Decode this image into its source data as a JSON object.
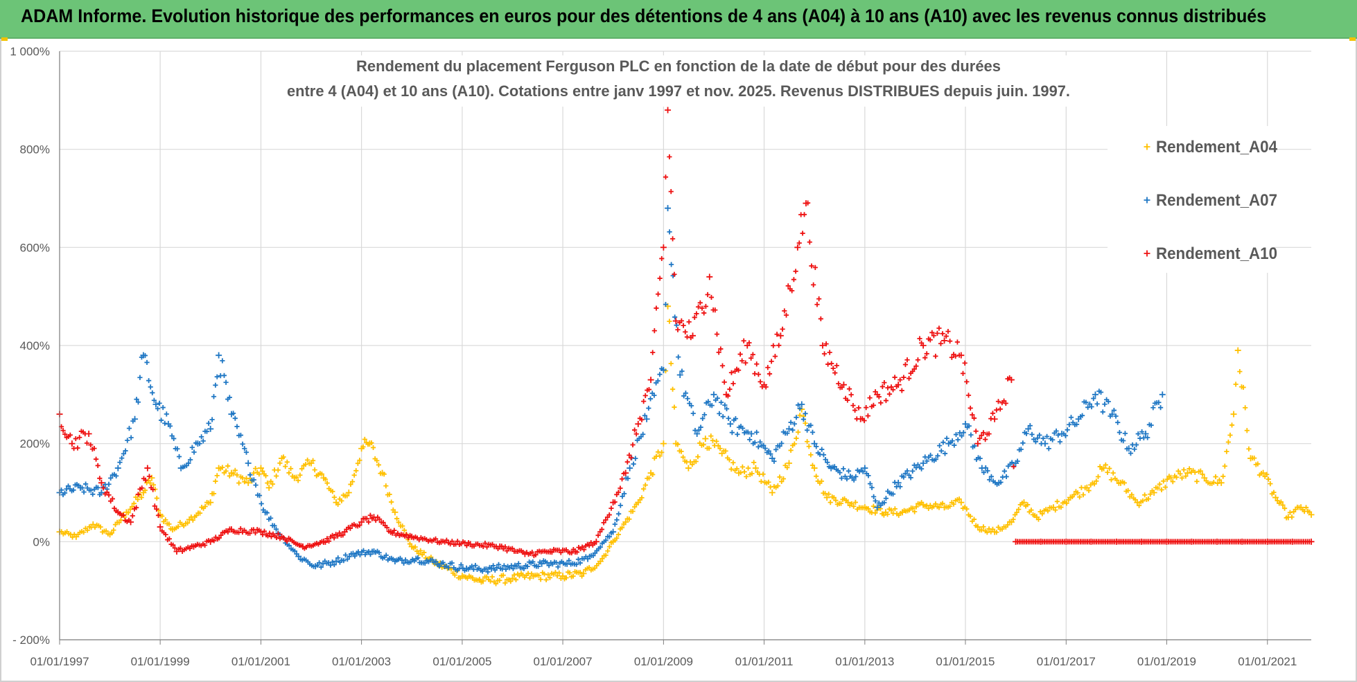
{
  "banner": {
    "title": "ADAM Informe. Evolution historique des performances en euros pour des détentions de 4 ans (A04) à 10 ans (A10) avec les revenus connus distribués"
  },
  "colors": {
    "banner_bg": "#6cc477",
    "A04": "#ffc000",
    "A07": "#1f77c4",
    "A10": "#ee1111",
    "grid": "#d9d9d9",
    "text": "#595959"
  },
  "chart_data": {
    "type": "scatter",
    "marker": "plus",
    "title_lines": [
      "Rendement du placement Ferguson PLC en fonction de la date de début pour des durées",
      "entre 4 (A04) et 10 ans (A10). Cotations entre janv 1997 et nov. 2025. Revenus DISTRIBUES depuis juin. 1997."
    ],
    "xlabel": "",
    "ylabel": "",
    "x_range": [
      "01/01/1997",
      "15/11/2021"
    ],
    "x_ticks": [
      "01/01/1997",
      "01/01/1999",
      "01/01/2001",
      "01/01/2003",
      "01/01/2005",
      "01/01/2007",
      "01/01/2009",
      "01/01/2011",
      "01/01/2013",
      "01/01/2015",
      "01/01/2017",
      "01/01/2019",
      "01/01/2021"
    ],
    "y_range": [
      -200,
      1000
    ],
    "y_ticks": [
      -200,
      0,
      200,
      400,
      600,
      800,
      1000
    ],
    "y_tick_labels": [
      "- 200%",
      "0%",
      "200%",
      "400%",
      "600%",
      "800%",
      "1 000%"
    ],
    "grid": true,
    "legend_position": "top-right",
    "series": [
      {
        "name": "Rendement_A04",
        "color": "#ffc000",
        "points": [
          [
            "1997-01-01",
            20
          ],
          [
            "1997-05-01",
            10
          ],
          [
            "1997-09-01",
            35
          ],
          [
            "1998-01-01",
            15
          ],
          [
            "1998-05-01",
            60
          ],
          [
            "1998-09-01",
            100
          ],
          [
            "1998-11-01",
            130
          ],
          [
            "1999-01-01",
            55
          ],
          [
            "1999-04-01",
            25
          ],
          [
            "1999-08-01",
            45
          ],
          [
            "2000-01-01",
            80
          ],
          [
            "2000-03-01",
            150
          ],
          [
            "2000-06-01",
            140
          ],
          [
            "2000-10-01",
            120
          ],
          [
            "2001-01-01",
            150
          ],
          [
            "2001-03-01",
            110
          ],
          [
            "2001-06-01",
            170
          ],
          [
            "2001-09-01",
            130
          ],
          [
            "2002-01-01",
            160
          ],
          [
            "2002-04-01",
            130
          ],
          [
            "2002-07-01",
            80
          ],
          [
            "2002-10-01",
            100
          ],
          [
            "2003-01-01",
            190
          ],
          [
            "2003-03-01",
            200
          ],
          [
            "2003-06-01",
            140
          ],
          [
            "2003-09-01",
            60
          ],
          [
            "2004-01-01",
            -10
          ],
          [
            "2004-06-01",
            -40
          ],
          [
            "2005-01-01",
            -70
          ],
          [
            "2005-06-01",
            -80
          ],
          [
            "2006-01-01",
            -75
          ],
          [
            "2006-06-01",
            -70
          ],
          [
            "2007-01-01",
            -70
          ],
          [
            "2007-06-01",
            -65
          ],
          [
            "2007-10-01",
            -40
          ],
          [
            "2008-01-01",
            0
          ],
          [
            "2008-04-01",
            40
          ],
          [
            "2008-07-01",
            80
          ],
          [
            "2008-10-01",
            140
          ],
          [
            "2009-01-01",
            200
          ],
          [
            "2009-02-01",
            480
          ],
          [
            "2009-04-01",
            200
          ],
          [
            "2009-07-01",
            150
          ],
          [
            "2009-11-01",
            210
          ],
          [
            "2010-03-01",
            180
          ],
          [
            "2010-07-01",
            140
          ],
          [
            "2010-11-01",
            150
          ],
          [
            "2011-03-01",
            100
          ],
          [
            "2011-07-01",
            160
          ],
          [
            "2011-10-01",
            270
          ],
          [
            "2012-01-01",
            150
          ],
          [
            "2012-04-01",
            90
          ],
          [
            "2012-09-01",
            80
          ],
          [
            "2013-01-01",
            70
          ],
          [
            "2013-06-01",
            60
          ],
          [
            "2013-10-01",
            60
          ],
          [
            "2014-03-01",
            75
          ],
          [
            "2014-08-01",
            70
          ],
          [
            "2014-12-01",
            80
          ],
          [
            "2015-04-01",
            30
          ],
          [
            "2015-08-01",
            20
          ],
          [
            "2015-12-01",
            40
          ],
          [
            "2016-03-01",
            80
          ],
          [
            "2016-06-01",
            50
          ],
          [
            "2016-10-01",
            70
          ],
          [
            "2017-02-01",
            90
          ],
          [
            "2017-06-01",
            110
          ],
          [
            "2017-10-01",
            150
          ],
          [
            "2018-02-01",
            120
          ],
          [
            "2018-06-01",
            80
          ],
          [
            "2018-10-01",
            100
          ],
          [
            "2019-02-01",
            130
          ],
          [
            "2019-06-01",
            140
          ],
          [
            "2019-10-01",
            130
          ],
          [
            "2020-02-01",
            120
          ],
          [
            "2020-05-01",
            260
          ],
          [
            "2020-06-01",
            390
          ],
          [
            "2020-09-01",
            170
          ],
          [
            "2020-12-01",
            140
          ],
          [
            "2021-03-01",
            90
          ],
          [
            "2021-06-01",
            50
          ],
          [
            "2021-09-01",
            70
          ],
          [
            "2021-11-15",
            55
          ]
        ]
      },
      {
        "name": "Rendement_A07",
        "color": "#1f77c4",
        "points": [
          [
            "1997-01-01",
            100
          ],
          [
            "1997-06-01",
            110
          ],
          [
            "1997-11-01",
            100
          ],
          [
            "1998-03-01",
            150
          ],
          [
            "1998-07-01",
            250
          ],
          [
            "1998-09-01",
            380
          ],
          [
            "1998-12-01",
            280
          ],
          [
            "1999-03-01",
            240
          ],
          [
            "1999-06-01",
            150
          ],
          [
            "1999-10-01",
            200
          ],
          [
            "2000-01-01",
            230
          ],
          [
            "2000-03-01",
            380
          ],
          [
            "2000-06-01",
            260
          ],
          [
            "2000-10-01",
            160
          ],
          [
            "2001-02-01",
            60
          ],
          [
            "2001-06-01",
            10
          ],
          [
            "2001-10-01",
            -30
          ],
          [
            "2002-02-01",
            -50
          ],
          [
            "2002-07-01",
            -40
          ],
          [
            "2002-11-01",
            -25
          ],
          [
            "2003-04-01",
            -20
          ],
          [
            "2003-09-01",
            -40
          ],
          [
            "2004-02-01",
            -35
          ],
          [
            "2004-08-01",
            -45
          ],
          [
            "2005-02-01",
            -55
          ],
          [
            "2005-08-01",
            -55
          ],
          [
            "2006-02-01",
            -50
          ],
          [
            "2006-08-01",
            -45
          ],
          [
            "2007-02-01",
            -45
          ],
          [
            "2007-07-01",
            -35
          ],
          [
            "2008-01-01",
            20
          ],
          [
            "2008-05-01",
            150
          ],
          [
            "2008-09-01",
            250
          ],
          [
            "2009-01-01",
            350
          ],
          [
            "2009-02-01",
            680
          ],
          [
            "2009-05-01",
            340
          ],
          [
            "2009-09-01",
            220
          ],
          [
            "2010-01-01",
            300
          ],
          [
            "2010-05-01",
            240
          ],
          [
            "2010-10-01",
            220
          ],
          [
            "2011-03-01",
            170
          ],
          [
            "2011-07-01",
            230
          ],
          [
            "2011-10-01",
            280
          ],
          [
            "2012-01-01",
            200
          ],
          [
            "2012-05-01",
            150
          ],
          [
            "2012-10-01",
            130
          ],
          [
            "2013-01-01",
            150
          ],
          [
            "2013-04-01",
            70
          ],
          [
            "2013-09-01",
            120
          ],
          [
            "2014-03-01",
            160
          ],
          [
            "2014-09-01",
            200
          ],
          [
            "2015-01-01",
            240
          ],
          [
            "2015-05-01",
            150
          ],
          [
            "2015-09-01",
            120
          ],
          [
            "2016-01-01",
            160
          ],
          [
            "2016-04-01",
            230
          ],
          [
            "2016-08-01",
            200
          ],
          [
            "2016-12-01",
            220
          ],
          [
            "2017-04-01",
            250
          ],
          [
            "2017-08-01",
            300
          ],
          [
            "2017-12-01",
            260
          ],
          [
            "2018-04-01",
            190
          ],
          [
            "2018-08-01",
            220
          ],
          [
            "2018-12-01",
            300
          ]
        ]
      },
      {
        "name": "Rendement_A10",
        "color": "#ee1111",
        "points": [
          [
            "1997-01-01",
            260
          ],
          [
            "1997-04-01",
            200
          ],
          [
            "1997-08-01",
            220
          ],
          [
            "1997-11-01",
            120
          ],
          [
            "1998-03-01",
            60
          ],
          [
            "1998-06-01",
            40
          ],
          [
            "1998-10-01",
            150
          ],
          [
            "1999-01-01",
            30
          ],
          [
            "1999-05-01",
            -20
          ],
          [
            "1999-09-01",
            -10
          ],
          [
            "2000-01-01",
            0
          ],
          [
            "2000-06-01",
            25
          ],
          [
            "2001-01-01",
            20
          ],
          [
            "2001-06-01",
            10
          ],
          [
            "2001-11-01",
            -10
          ],
          [
            "2002-04-01",
            0
          ],
          [
            "2002-09-01",
            20
          ],
          [
            "2003-01-01",
            40
          ],
          [
            "2003-04-01",
            50
          ],
          [
            "2003-08-01",
            20
          ],
          [
            "2004-01-01",
            10
          ],
          [
            "2004-08-01",
            0
          ],
          [
            "2005-03-01",
            -5
          ],
          [
            "2005-10-01",
            -10
          ],
          [
            "2006-04-01",
            -25
          ],
          [
            "2006-10-01",
            -20
          ],
          [
            "2007-04-01",
            -20
          ],
          [
            "2007-09-01",
            0
          ],
          [
            "2008-01-01",
            80
          ],
          [
            "2008-04-01",
            140
          ],
          [
            "2008-07-01",
            240
          ],
          [
            "2008-10-01",
            330
          ],
          [
            "2009-01-01",
            600
          ],
          [
            "2009-02-01",
            880
          ],
          [
            "2009-04-01",
            450
          ],
          [
            "2009-08-01",
            420
          ],
          [
            "2009-12-01",
            540
          ],
          [
            "2010-04-01",
            300
          ],
          [
            "2010-09-01",
            400
          ],
          [
            "2011-01-01",
            320
          ],
          [
            "2011-05-01",
            420
          ],
          [
            "2011-09-01",
            600
          ],
          [
            "2011-11-01",
            690
          ],
          [
            "2012-03-01",
            400
          ],
          [
            "2012-08-01",
            320
          ],
          [
            "2012-12-01",
            250
          ],
          [
            "2013-04-01",
            300
          ],
          [
            "2013-09-01",
            320
          ],
          [
            "2014-03-01",
            400
          ],
          [
            "2014-08-01",
            410
          ],
          [
            "2014-12-01",
            380
          ],
          [
            "2015-04-01",
            200
          ],
          [
            "2015-08-01",
            250
          ],
          [
            "2015-12-01",
            330
          ],
          [
            "2016-01-01",
            0
          ],
          [
            "2016-07-01",
            0
          ],
          [
            "2017-01-01",
            0
          ],
          [
            "2017-07-01",
            0
          ],
          [
            "2018-01-01",
            0
          ],
          [
            "2018-07-01",
            0
          ],
          [
            "2019-01-01",
            0
          ],
          [
            "2019-07-01",
            0
          ],
          [
            "2020-01-01",
            0
          ],
          [
            "2020-07-01",
            0
          ],
          [
            "2021-01-01",
            0
          ],
          [
            "2021-07-01",
            0
          ],
          [
            "2021-11-15",
            0
          ]
        ]
      }
    ]
  }
}
